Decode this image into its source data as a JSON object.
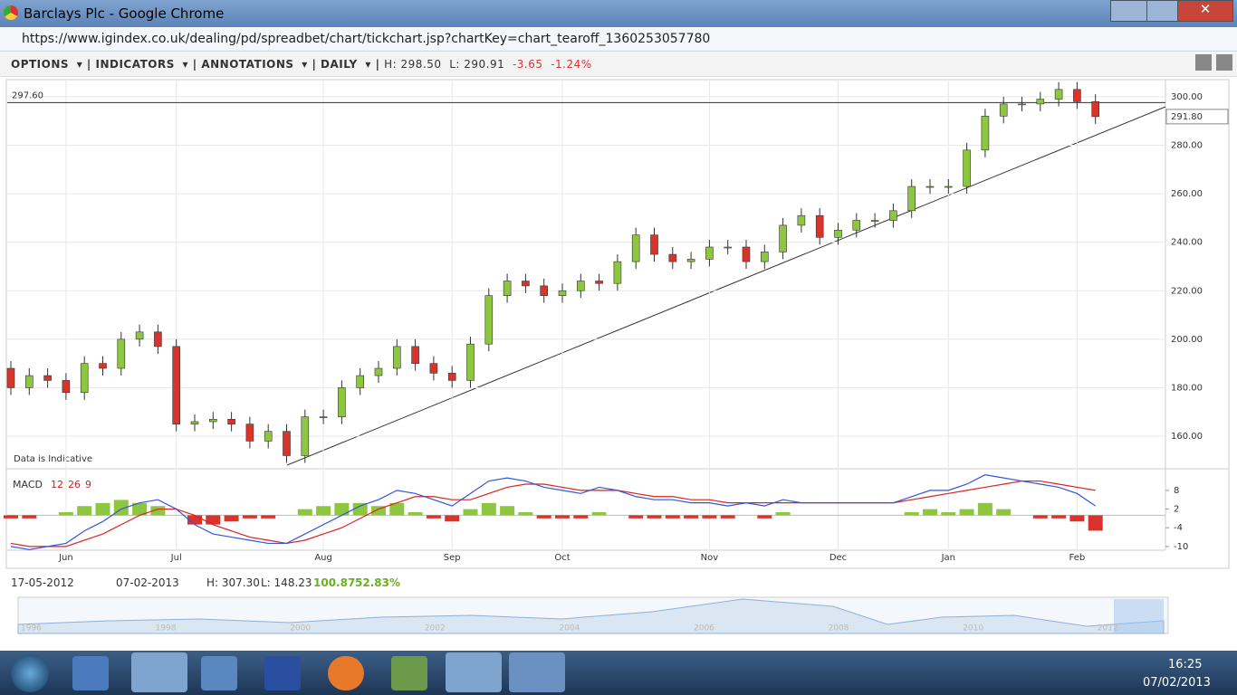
{
  "window": {
    "title": "Barclays Plc - Google Chrome",
    "url": "https://www.igindex.co.uk/dealing/pd/spreadbet/chart/tickchart.jsp?chartKey=chart_tearoff_1360253057780"
  },
  "toolbar": {
    "menus": [
      "OPTIONS",
      "INDICATORS",
      "ANNOTATIONS",
      "DAILY"
    ],
    "high": "H: 298.50",
    "low": "L: 290.91",
    "change": "-3.65",
    "change_pct": "-1.24%"
  },
  "chart_data": {
    "type": "candlestick",
    "categories": [
      null,
      null,
      null,
      "Jun",
      null,
      null,
      null,
      null,
      null,
      "Jul",
      null,
      null,
      null,
      null,
      null,
      null,
      null,
      "Aug",
      null,
      null,
      null,
      null,
      null,
      null,
      "Sep",
      null,
      null,
      null,
      null,
      null,
      "Oct",
      null,
      null,
      null,
      null,
      null,
      null,
      null,
      "Nov",
      null,
      null,
      null,
      null,
      null,
      null,
      "Dec",
      null,
      null,
      null,
      null,
      null,
      "Jan",
      null,
      null,
      null,
      null,
      null,
      null,
      "Feb",
      null
    ],
    "open": [
      188,
      180,
      185,
      183,
      178,
      190,
      188,
      200,
      203,
      197,
      165,
      166,
      167,
      165,
      158,
      162,
      152,
      168,
      168,
      180,
      185,
      188,
      197,
      190,
      186,
      183,
      198,
      218,
      224,
      222,
      218,
      220,
      224,
      223,
      232,
      243,
      235,
      232,
      233,
      238,
      238,
      232,
      236,
      247,
      251,
      242,
      245,
      249,
      249,
      253,
      263,
      263,
      263,
      278,
      292,
      297,
      297,
      299,
      303,
      298
    ],
    "high": [
      191,
      188,
      188,
      186,
      193,
      193,
      203,
      206,
      206,
      200,
      169,
      170,
      170,
      168,
      165,
      165,
      171,
      171,
      183,
      188,
      191,
      200,
      200,
      193,
      189,
      201,
      221,
      227,
      227,
      225,
      223,
      227,
      227,
      235,
      246,
      246,
      238,
      236,
      241,
      241,
      241,
      239,
      250,
      254,
      254,
      248,
      252,
      252,
      256,
      266,
      266,
      266,
      281,
      295,
      300,
      300,
      302,
      306,
      306,
      301
    ],
    "low": [
      177,
      177,
      180,
      175,
      175,
      185,
      185,
      197,
      194,
      162,
      162,
      163,
      162,
      155,
      155,
      149,
      149,
      165,
      165,
      177,
      182,
      185,
      187,
      183,
      180,
      180,
      195,
      215,
      219,
      215,
      215,
      217,
      220,
      220,
      229,
      232,
      229,
      229,
      230,
      235,
      229,
      229,
      233,
      244,
      239,
      239,
      242,
      246,
      246,
      250,
      260,
      260,
      260,
      275,
      289,
      294,
      294,
      296,
      295,
      288.8
    ],
    "close": [
      180,
      185,
      183,
      178,
      190,
      188,
      200,
      203,
      197,
      165,
      166,
      167,
      165,
      158,
      162,
      152,
      168,
      168,
      180,
      185,
      188,
      197,
      190,
      186,
      183,
      198,
      218,
      224,
      222,
      218,
      220,
      224,
      223,
      232,
      243,
      235,
      232,
      233,
      238,
      238,
      232,
      236,
      247,
      251,
      242,
      245,
      249,
      249,
      253,
      263,
      263,
      263,
      278,
      292,
      297,
      297,
      299,
      303,
      298,
      291.8
    ],
    "up_color": "#8dc63f",
    "down_color": "#d9342b",
    "ylim": [
      147.7,
      306.3
    ],
    "yticks": [
      {
        "value": 160,
        "label": "160.00"
      },
      {
        "value": 180,
        "label": "180.00"
      },
      {
        "value": 200,
        "label": "200.00"
      },
      {
        "value": 220,
        "label": "220.00"
      },
      {
        "value": 240,
        "label": "240.00"
      },
      {
        "value": 260,
        "label": "260.00"
      },
      {
        "value": 280,
        "label": "280.00"
      },
      {
        "value": 300,
        "label": "300.00"
      }
    ],
    "grid": true,
    "reference_line": {
      "value": 297.6,
      "label": "297.60"
    },
    "last_price": {
      "value": 291.8,
      "label": "291.80"
    },
    "note": "Data is Indicative",
    "macd": {
      "name": "MACD",
      "params": [
        12,
        26,
        9
      ],
      "macd": [
        -10,
        -11,
        -10,
        -9,
        -5,
        -2,
        2,
        4,
        5,
        2,
        -3,
        -6,
        -7,
        -8,
        -9,
        -9,
        -6,
        -3,
        0,
        3,
        5,
        8,
        7,
        5,
        3,
        7,
        11,
        12,
        11,
        9,
        8,
        7,
        9,
        8,
        6,
        5,
        5,
        4,
        4,
        3,
        4,
        3,
        5,
        4,
        4,
        4,
        4,
        4,
        4,
        6,
        8,
        8,
        10,
        13,
        12,
        11,
        10,
        9,
        7,
        3
      ],
      "signal": [
        -9,
        -10,
        -10,
        -10,
        -8,
        -6,
        -3,
        0,
        2,
        2,
        0,
        -3,
        -5,
        -7,
        -8,
        -9,
        -8,
        -6,
        -4,
        -1,
        2,
        4,
        6,
        6,
        5,
        5,
        7,
        9,
        10,
        10,
        9,
        8,
        8,
        8,
        7,
        6,
        6,
        5,
        5,
        4,
        4,
        4,
        4,
        4,
        4,
        4,
        4,
        4,
        4,
        5,
        6,
        7,
        8,
        9,
        10,
        11,
        11,
        10,
        9,
        8
      ],
      "macd_color": "#3355dd",
      "signal_color": "#dd2222",
      "ylim": [
        -11.2,
        12.9
      ],
      "yticks": [
        8,
        2,
        -4,
        -10
      ]
    }
  },
  "range": {
    "from": "17-05-2012",
    "to": "07-02-2013",
    "high": "H: 307.30",
    "low": "L: 148.23",
    "change": "100.87",
    "change_pct": "52.83%"
  },
  "navigator": {
    "years": [
      "1996",
      "1998",
      "2000",
      "2002",
      "2004",
      "2006",
      "2008",
      "2010",
      "2012"
    ]
  },
  "taskbar": {
    "time": "16:25",
    "date": "07/02/2013"
  }
}
